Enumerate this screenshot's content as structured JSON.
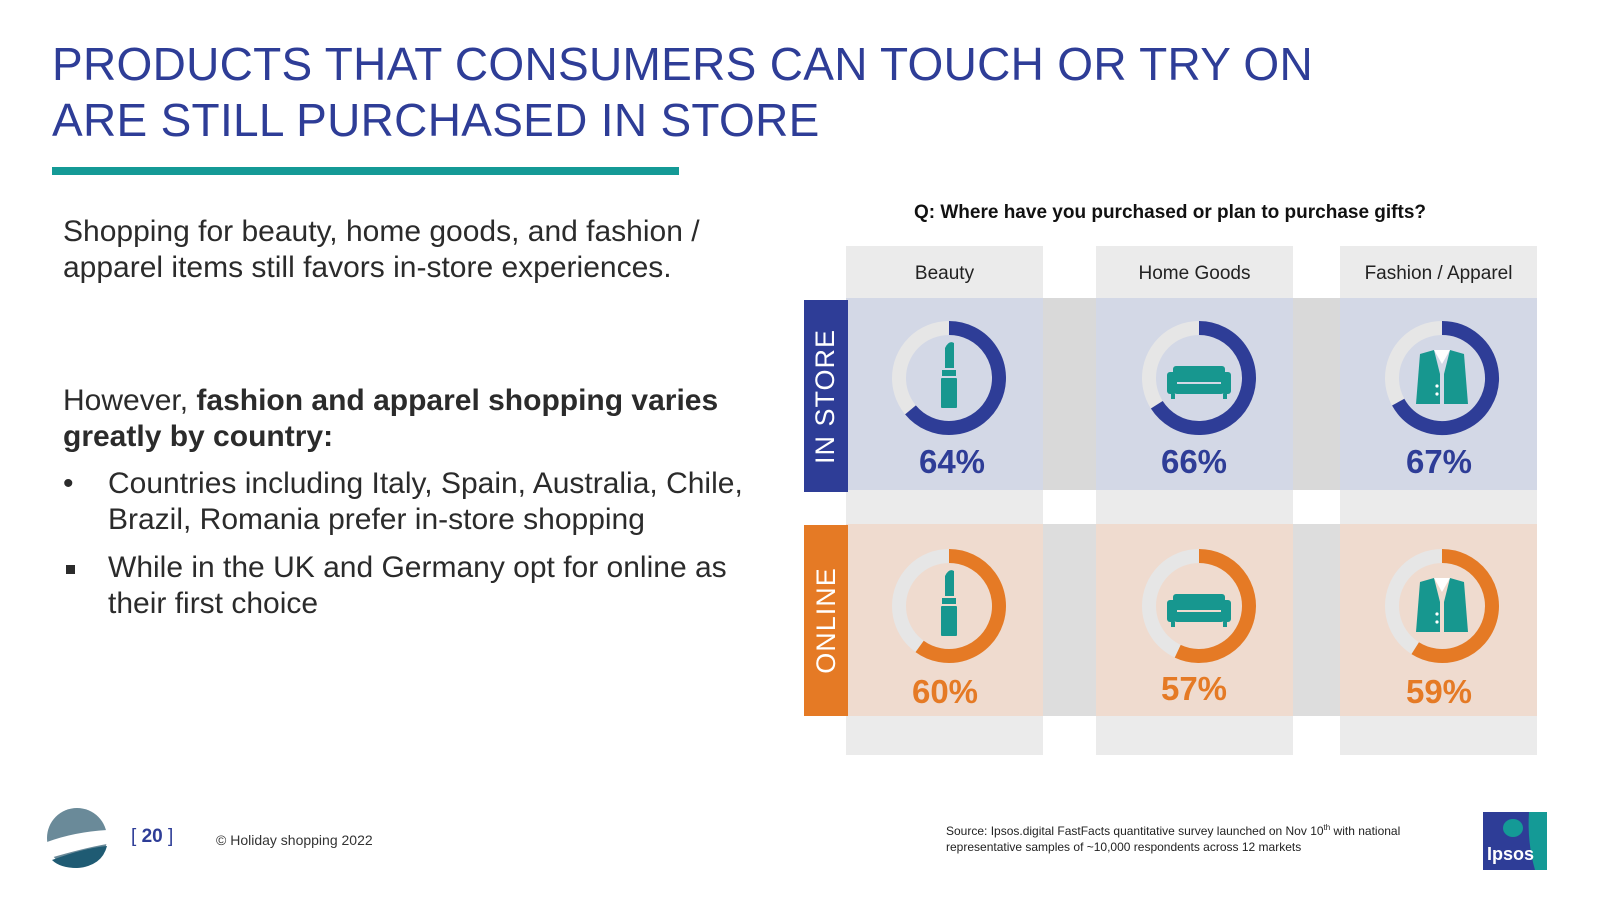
{
  "title": {
    "line1": "PRODUCTS THAT CONSUMERS CAN TOUCH OR TRY ON",
    "line2": "ARE STILL PURCHASED IN STORE"
  },
  "body": {
    "intro": "Shopping for beauty, home goods, and fashion / apparel items still favors in-store experiences.",
    "para2_prefix": "However, ",
    "para2_bold": "fashion and apparel shopping varies greatly by country:",
    "bullets": [
      {
        "marker": "•",
        "text": "Countries including Italy, Spain, Australia, Chile, Brazil, Romania prefer in-store shopping"
      },
      {
        "marker": "square",
        "text": "While in the UK and Germany opt for online as their first choice"
      }
    ]
  },
  "chart_data": {
    "type": "donut-grid",
    "title": "Q: Where have you purchased or plan to purchase gifts?",
    "categories": [
      "Beauty",
      "Home Goods",
      "Fashion / Apparel"
    ],
    "icons": [
      "lipstick-icon",
      "sofa-icon",
      "jacket-icon"
    ],
    "series": [
      {
        "name": "IN STORE",
        "values": [
          64,
          66,
          67
        ],
        "labels": [
          "64%",
          "66%",
          "67%"
        ],
        "color": "#2e3d97",
        "band_color": "#d3d8e6"
      },
      {
        "name": "ONLINE",
        "values": [
          60,
          57,
          59
        ],
        "labels": [
          "60%",
          "57%",
          "59%"
        ],
        "color": "#e57a25",
        "band_color": "#efdbcf"
      }
    ],
    "unit": "%",
    "max": 100
  },
  "colors": {
    "title": "#2e3d97",
    "accent_rule": "#149a96",
    "icon": "#17978f",
    "track": "#e6e6e6",
    "column_bg": "#ebebeb"
  },
  "footer": {
    "page_number": "20",
    "copyright": "© Holiday shopping 2022",
    "source_pre": "Source:  Ipsos.digital FastFacts quantitative survey launched on Nov 10",
    "source_sup": "th",
    "source_post": " with national representative samples of ~10,000 respondents across 12 markets",
    "brand": "Ipsos"
  }
}
